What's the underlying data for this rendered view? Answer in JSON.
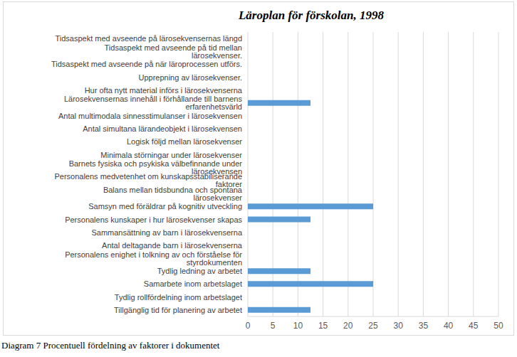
{
  "chart_data": {
    "type": "bar",
    "title": "Läroplan för förskolan, 1998",
    "annotations": [
      "Diagram 7 Procentuell fördelning av faktorer i dokumentet"
    ],
    "orientation": "horizontal",
    "categories": [
      "Tidsaspekt med avseende på lärosekvensernas längd",
      "Tidsaspekt med avseende på tid mellan lärosekvenser.",
      "Tidsaspekt med avseende på när läroprocessen utförs.",
      "Upprepning av lärosekvenser.",
      "Hur ofta nytt material införs i lärosekvenserna",
      "Lärosekvensernas innehåll i förhållande till barnens erfarenhetsvärld",
      "Antal multimodala sinnesstimulanser i lärosekvensen",
      "Antal simultana lärandeobjekt i lärosekvensen",
      "Logisk följd mellan lärosekvenser",
      "Minimala störningar under lärosekvenser",
      "Barnets fysiska och psykiska välbefinnande under lärosekvensen",
      "Personalens medvetenhet om kunskapsstabiliserande faktorer",
      "Balans mellan tidsbundna och spontana lärosekvenser",
      "Samsyn med föräldrar på kognitiv utveckling",
      "Personalens kunskaper i hur lärosekvenser skapas",
      "Sammansättning av barn i lärosekvenserna",
      "Antal deltagande barn i lärosekvenserna",
      "Personalens enighet i tolkning av och förståelse för styrdokumenten",
      "Tydlig ledning av arbetet",
      "Samarbete inom arbetslaget",
      "Tydlig rollfördelning inom arbetslaget",
      "Tillgänglig tid för planering av arbetet"
    ],
    "values": [
      0,
      0,
      0,
      0,
      0,
      12.5,
      0,
      0,
      0,
      0,
      0,
      0,
      0,
      25,
      12.5,
      0,
      0,
      0,
      12.5,
      25,
      0,
      12.5
    ],
    "color": "#5b9bd5",
    "xlim": [
      0,
      50
    ],
    "xticks": [
      0,
      5,
      10,
      15,
      20,
      25,
      30,
      35,
      40,
      45,
      50
    ],
    "grid": true
  }
}
